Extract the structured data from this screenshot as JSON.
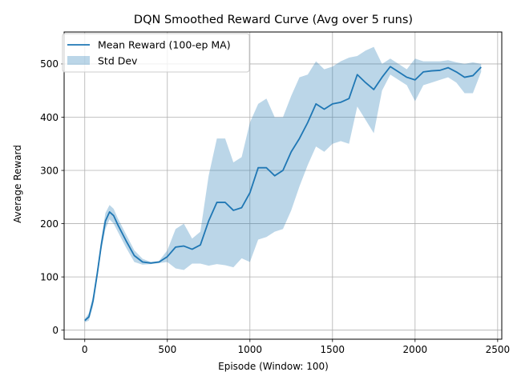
{
  "chart_data": {
    "type": "line",
    "title": "DQN Smoothed Reward Curve (Avg over 5 runs)",
    "xlabel": "Episode (Window: 100)",
    "ylabel": "Average Reward",
    "xlim": [
      -125,
      2525
    ],
    "ylim": [
      -17,
      560
    ],
    "xticks": [
      0,
      500,
      1000,
      1500,
      2000,
      2500
    ],
    "yticks": [
      0,
      100,
      200,
      300,
      400,
      500
    ],
    "grid": true,
    "legend_position": "top-left",
    "series": [
      {
        "name": "Mean Reward (100-ep MA)",
        "color": "#1f77b4",
        "x": [
          0,
          25,
          50,
          75,
          100,
          125,
          150,
          175,
          200,
          250,
          300,
          350,
          400,
          450,
          500,
          550,
          600,
          650,
          700,
          750,
          800,
          850,
          900,
          950,
          1000,
          1050,
          1100,
          1150,
          1200,
          1250,
          1300,
          1350,
          1400,
          1450,
          1500,
          1550,
          1600,
          1650,
          1700,
          1750,
          1800,
          1850,
          1900,
          1950,
          2000,
          2050,
          2100,
          2150,
          2200,
          2250,
          2300,
          2350,
          2400
        ],
        "y": [
          18,
          25,
          55,
          105,
          160,
          205,
          222,
          215,
          198,
          168,
          140,
          128,
          126,
          128,
          138,
          156,
          158,
          152,
          160,
          205,
          240,
          240,
          225,
          230,
          258,
          305,
          305,
          290,
          300,
          335,
          360,
          390,
          425,
          415,
          425,
          428,
          435,
          480,
          465,
          452,
          475,
          495,
          485,
          475,
          470,
          485,
          487,
          488,
          493,
          485,
          475,
          478,
          494
        ]
      }
    ],
    "band": {
      "name": "Std Dev",
      "color": "#1f77b4",
      "opacity": 0.3,
      "x": [
        0,
        25,
        50,
        75,
        100,
        125,
        150,
        175,
        200,
        250,
        300,
        350,
        400,
        450,
        500,
        550,
        600,
        650,
        700,
        750,
        800,
        850,
        900,
        950,
        1000,
        1050,
        1100,
        1150,
        1200,
        1250,
        1300,
        1350,
        1400,
        1450,
        1500,
        1550,
        1600,
        1650,
        1700,
        1750,
        1800,
        1850,
        1900,
        1950,
        2000,
        2050,
        2100,
        2150,
        2200,
        2250,
        2300,
        2350,
        2400
      ],
      "lower": [
        15,
        18,
        45,
        95,
        150,
        190,
        208,
        200,
        185,
        155,
        128,
        123,
        124,
        126,
        128,
        116,
        113,
        125,
        125,
        121,
        124,
        122,
        118,
        135,
        128,
        170,
        175,
        185,
        190,
        225,
        270,
        310,
        345,
        335,
        350,
        355,
        350,
        420,
        395,
        370,
        450,
        480,
        470,
        460,
        430,
        460,
        465,
        470,
        475,
        465,
        445,
        445,
        485
      ],
      "upper": [
        21,
        32,
        65,
        115,
        172,
        220,
        235,
        228,
        210,
        180,
        150,
        134,
        128,
        130,
        150,
        190,
        200,
        172,
        185,
        290,
        360,
        360,
        315,
        325,
        390,
        425,
        435,
        400,
        400,
        440,
        475,
        480,
        505,
        490,
        495,
        505,
        512,
        515,
        525,
        532,
        500,
        510,
        500,
        490,
        510,
        505,
        505,
        505,
        507,
        503,
        500,
        503,
        500
      ]
    }
  }
}
